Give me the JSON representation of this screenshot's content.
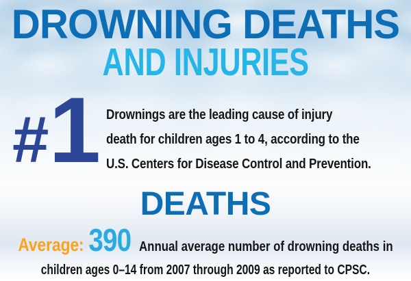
{
  "page": {
    "title": {
      "line1": "DROWNING DEATHS",
      "line2": "AND INJURIES"
    },
    "rank": {
      "symbol": "#",
      "number": "1",
      "lines": [
        "Drownings are the leading cause of injury",
        "death for children ages 1 to 4, according to the",
        "U.S. Centers for Disease Control and Prevention."
      ]
    },
    "section": {
      "heading": "DEATHS"
    },
    "stat": {
      "label": "Average:",
      "value": "390",
      "description_line1": "Annual average number of drowning deaths in",
      "description_line2": "children ages 0–14 from 2007 through 2009 as reported to CPSC."
    },
    "colors": {
      "title_primary_blue": "#0d6eb6",
      "title_secondary_cyan": "#27b5e8",
      "rank_navy": "#2b4697",
      "stat_label_orange": "#f9a21c",
      "stat_value_cyan": "#29abe2",
      "body_text": "#151515",
      "background_water": "#c0d8ea"
    }
  }
}
